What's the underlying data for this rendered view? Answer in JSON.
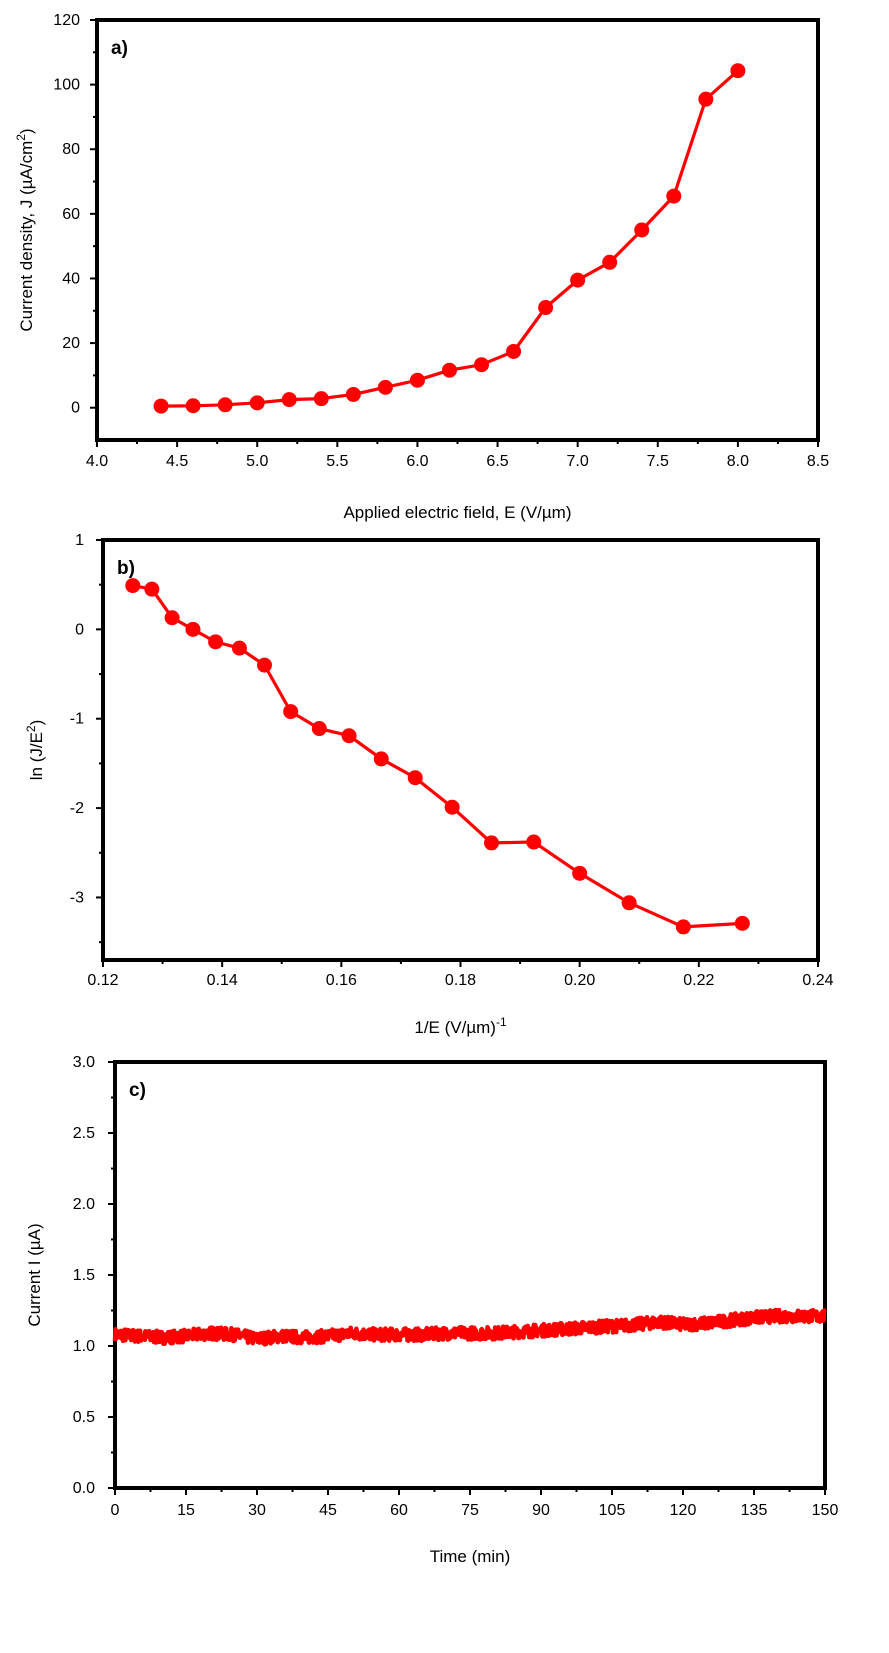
{
  "chart_data": [
    {
      "type": "line",
      "panel_label": "a)",
      "xlabel": "Applied electric field, E (V/µm)",
      "ylabel": "Current density, J (µA/cm",
      "ylabel_superscript": "2",
      "ylabel_suffix": ")",
      "xlim": [
        4.0,
        8.5
      ],
      "ylim": [
        -10,
        120
      ],
      "xticks": [
        "4.0",
        "4.5",
        "5.0",
        "5.5",
        "6.0",
        "6.5",
        "7.0",
        "7.5",
        "8.0",
        "8.5"
      ],
      "yticks": [
        "0",
        "20",
        "40",
        "60",
        "80",
        "100",
        "120"
      ],
      "marker": "circle",
      "color": "#ff0000",
      "series": [
        {
          "x": [
            4.4,
            4.6,
            4.8,
            5.0,
            5.2,
            5.4,
            5.6,
            5.8,
            6.0,
            6.2,
            6.4,
            6.6,
            6.8,
            7.0,
            7.2,
            7.4,
            7.6,
            7.8,
            8.0
          ],
          "y": [
            0.5,
            0.6,
            0.9,
            1.5,
            2.5,
            2.8,
            4.1,
            6.3,
            8.5,
            11.6,
            13.3,
            17.4,
            31.0,
            39.5,
            45.0,
            55.0,
            65.5,
            95.5,
            104.3
          ]
        }
      ]
    },
    {
      "type": "line",
      "panel_label": "b)",
      "xlabel": "1/E (V/µm)",
      "xlabel_superscript": "-1",
      "ylabel": "ln (J/E",
      "ylabel_superscript": "2",
      "ylabel_suffix": ")",
      "xlim": [
        0.12,
        0.24
      ],
      "ylim": [
        -3.7,
        1.0
      ],
      "xticks": [
        "0.12",
        "0.14",
        "0.16",
        "0.18",
        "0.20",
        "0.22",
        "0.24"
      ],
      "yticks": [
        "-3",
        "-2",
        "-1",
        "0",
        "1"
      ],
      "marker": "circle",
      "color": "#ff0000",
      "series": [
        {
          "x": [
            0.125,
            0.1282,
            0.1316,
            0.1351,
            0.1389,
            0.1429,
            0.1471,
            0.1515,
            0.1563,
            0.1613,
            0.1667,
            0.1724,
            0.1786,
            0.1852,
            0.1923,
            0.2,
            0.2083,
            0.2174,
            0.2273
          ],
          "y": [
            0.49,
            0.45,
            0.13,
            0.0,
            -0.14,
            -0.21,
            -0.4,
            -0.92,
            -1.11,
            -1.19,
            -1.45,
            -1.66,
            -1.99,
            -2.39,
            -2.38,
            -2.73,
            -3.06,
            -3.33,
            -3.29
          ]
        }
      ]
    },
    {
      "type": "line",
      "panel_label": "c)",
      "xlabel": "Time (min)",
      "ylabel": "Current I (µA)",
      "xlim": [
        0,
        150
      ],
      "ylim": [
        0.0,
        3.0
      ],
      "xticks": [
        "0",
        "15",
        "30",
        "45",
        "60",
        "75",
        "90",
        "105",
        "120",
        "135",
        "150"
      ],
      "yticks": [
        "0.0",
        "0.5",
        "1.0",
        "1.5",
        "2.0",
        "2.5",
        "3.0"
      ],
      "color": "#ff0000",
      "series": [
        {
          "x": [
            0,
            5,
            10,
            15,
            20,
            25,
            30,
            35,
            40,
            45,
            50,
            55,
            60,
            65,
            70,
            75,
            80,
            85,
            90,
            95,
            100,
            105,
            110,
            115,
            120,
            125,
            130,
            135,
            140,
            145,
            150
          ],
          "y": [
            1.08,
            1.07,
            1.06,
            1.07,
            1.09,
            1.08,
            1.05,
            1.07,
            1.06,
            1.07,
            1.09,
            1.08,
            1.08,
            1.08,
            1.09,
            1.09,
            1.09,
            1.1,
            1.11,
            1.12,
            1.13,
            1.14,
            1.15,
            1.17,
            1.15,
            1.16,
            1.18,
            1.2,
            1.21,
            1.21,
            1.21
          ]
        }
      ]
    }
  ]
}
